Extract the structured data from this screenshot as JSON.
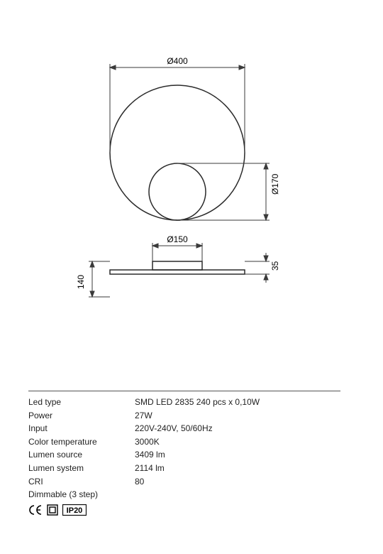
{
  "diagram": {
    "outer_diameter_label": "Ø400",
    "inner_diameter_label": "Ø170",
    "base_inner_label": "Ø150",
    "height_label": "35",
    "depth_label": "140",
    "stroke_color": "#2a2a2a",
    "dimline_color": "#3a3a3a",
    "stroke_width": 1.5,
    "thin_stroke": 1,
    "font_size": 12,
    "outer_r": 95,
    "inner_r": 40,
    "base_w": 70,
    "base_h": 12,
    "side_depth": 50
  },
  "specs": {
    "rows": [
      {
        "label": "Led type",
        "value": "SMD LED 2835 240 pcs x 0,10W"
      },
      {
        "label": "Power",
        "value": "27W"
      },
      {
        "label": "Input",
        "value": "220V-240V, 50/60Hz"
      },
      {
        "label": "Color temperature",
        "value": "3000K"
      },
      {
        "label": "Lumen source",
        "value": "3409 lm"
      },
      {
        "label": "Lumen system",
        "value": "2114 lm"
      },
      {
        "label": "CRI",
        "value": "80"
      },
      {
        "label": "Dimmable (3 step)",
        "value": ""
      }
    ]
  },
  "cert": {
    "ce": "CE",
    "ip": "IP20",
    "box_stroke": "#000",
    "font_size": 11
  }
}
